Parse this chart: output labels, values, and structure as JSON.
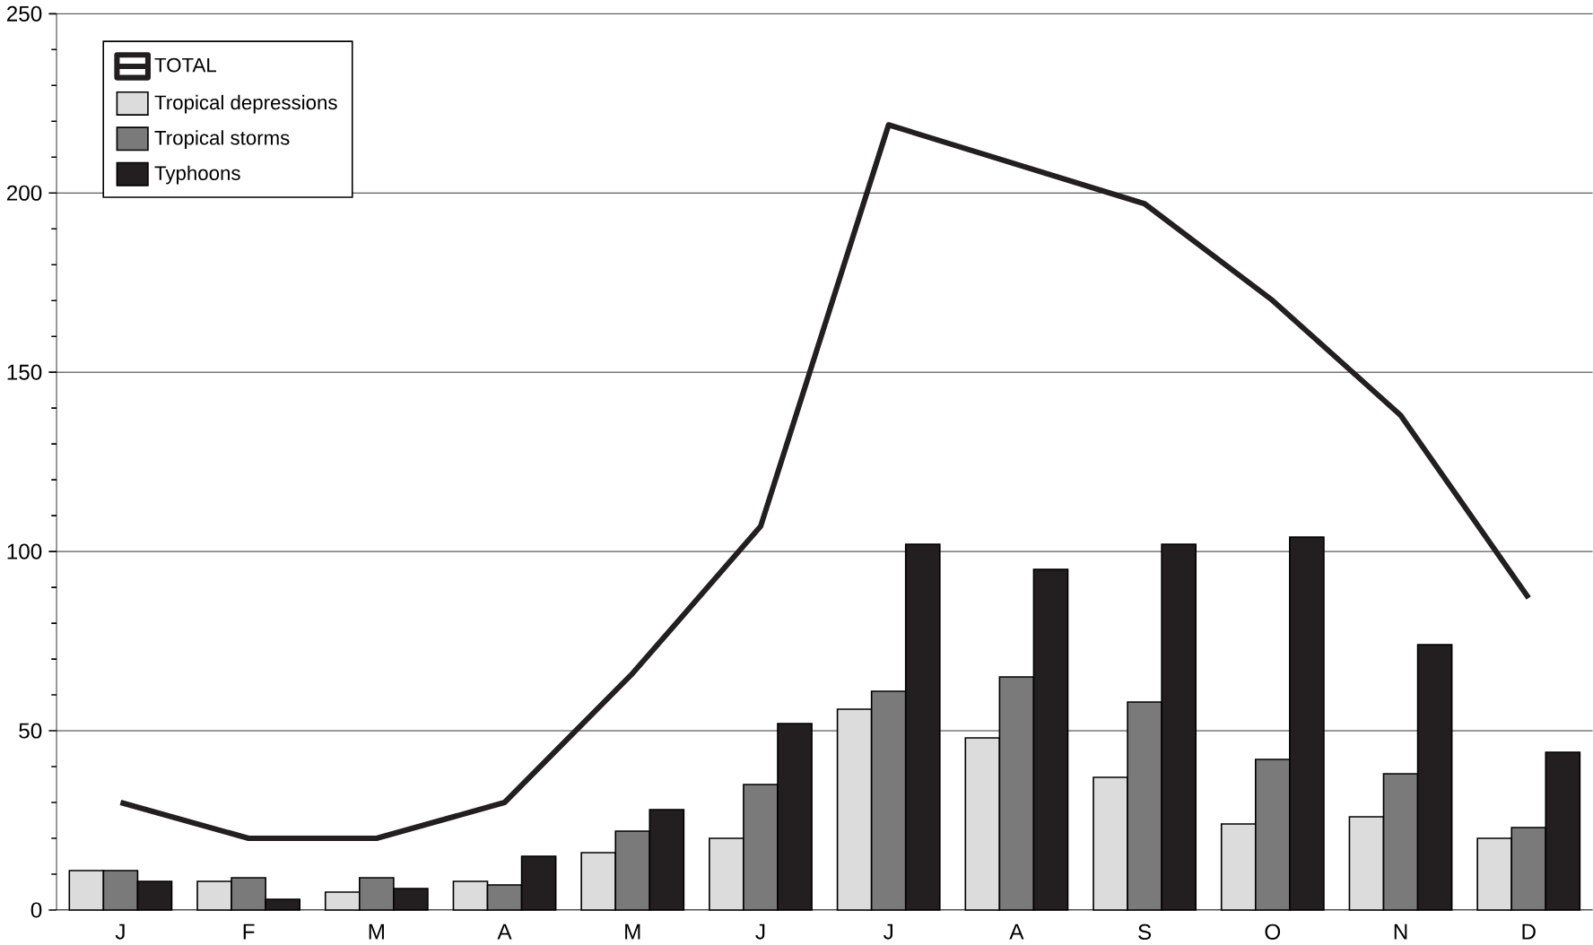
{
  "chart_data": {
    "type": "bar",
    "categories": [
      "J",
      "F",
      "M",
      "A",
      "M",
      "J",
      "J",
      "A",
      "S",
      "O",
      "N",
      "D"
    ],
    "series": [
      {
        "name": "TOTAL",
        "type": "line",
        "color": "#231f20",
        "values": [
          30,
          20,
          20,
          30,
          66,
          107,
          219,
          208,
          197,
          170,
          138,
          87
        ]
      },
      {
        "name": "Tropical depressions",
        "color": "#dcdcdc",
        "values": [
          11,
          8,
          5,
          8,
          16,
          20,
          56,
          48,
          37,
          24,
          26,
          20
        ]
      },
      {
        "name": "Tropical storms",
        "color": "#7a7a7a",
        "values": [
          11,
          9,
          9,
          7,
          22,
          35,
          61,
          65,
          58,
          42,
          38,
          23
        ]
      },
      {
        "name": "Typhoons",
        "color": "#231f20",
        "values": [
          8,
          3,
          6,
          15,
          28,
          52,
          102,
          95,
          102,
          104,
          74,
          44
        ]
      }
    ],
    "ylim": [
      0,
      250
    ],
    "yticks": [
      0,
      50,
      100,
      150,
      200,
      250
    ],
    "grid": "y",
    "legend": "top left",
    "marker": "none",
    "line_style": "solid"
  }
}
